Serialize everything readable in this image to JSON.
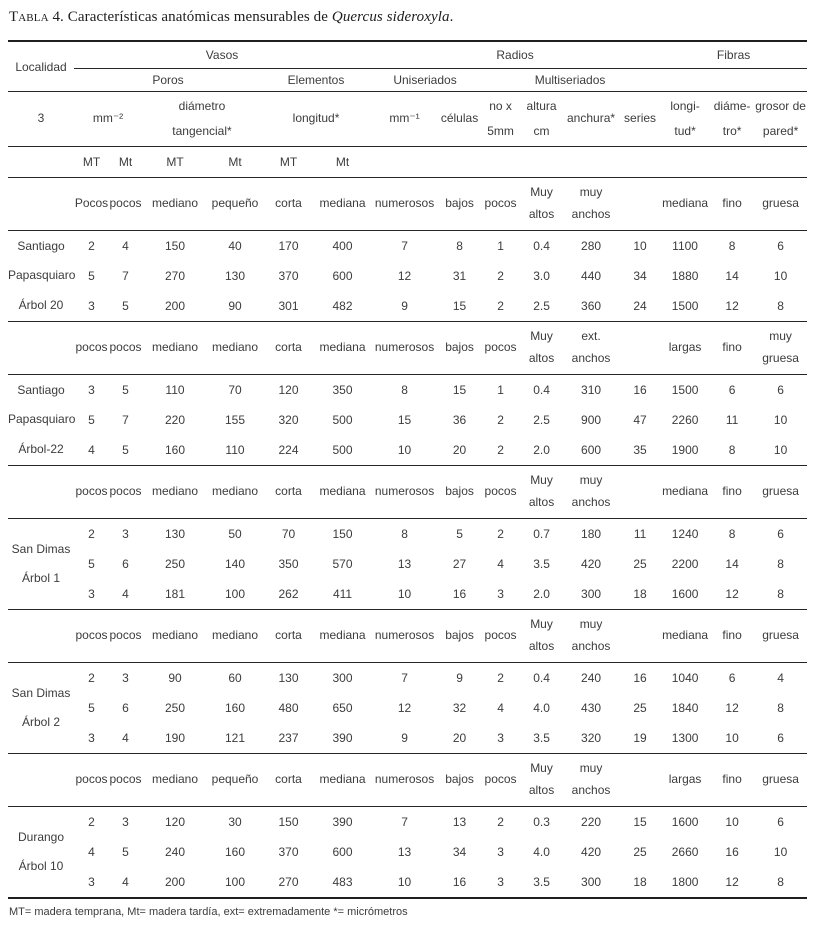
{
  "title": {
    "label": "Tabla 4.",
    "text": "Características anatómicas mensurables de",
    "species": "Quercus sideroxyla",
    "suffix": "."
  },
  "table": {
    "header": {
      "localidad": "Localidad",
      "localidad_sub": "3",
      "groups": {
        "vasos": "Vasos",
        "radios": "Radios",
        "fibras": "Fibras"
      },
      "subgroups": {
        "poros": "Poros",
        "elementos": "Elementos",
        "uniseriados": "Uniseriados",
        "multiseriados": "Multiseriados"
      },
      "columns": {
        "poros_mm2": "mm⁻²",
        "poros_diametro": "diámetro\ntangencial*",
        "elementos_longitud": "longitud*",
        "uni_mm1": "mm⁻¹",
        "uni_celulas": "células",
        "multi_no_x_5mm": "no x\n5mm",
        "multi_altura": "altura\ncm",
        "multi_anchura": "anchura*",
        "multi_series": "series",
        "fibras_longitud": "longi-\ntud*",
        "fibras_diametro": "diáme-\ntro*",
        "fibras_grosor": "grosor de\npared*"
      },
      "season": [
        "MT",
        "Mt",
        "MT",
        "Mt",
        "MT",
        "Mt"
      ]
    },
    "blocks": [
      {
        "locality": "Santiago\nPapasquiaro\nÁrbol 20",
        "qualitative": [
          "Pocos",
          "pocos",
          "mediano",
          "pequeño",
          "corta",
          "mediana",
          "numerosos",
          "bajos",
          "pocos",
          "Muy\naltos",
          "muy\nanchos",
          "",
          "mediana",
          "fino",
          "gruesa"
        ],
        "rows": [
          [
            "2",
            "4",
            "150",
            "40",
            "170",
            "400",
            "7",
            "8",
            "1",
            "0.4",
            "280",
            "10",
            "1100",
            "8",
            "6"
          ],
          [
            "5",
            "7",
            "270",
            "130",
            "370",
            "600",
            "12",
            "31",
            "2",
            "3.0",
            "440",
            "34",
            "1880",
            "14",
            "10"
          ],
          [
            "3",
            "5",
            "200",
            "90",
            "301",
            "482",
            "9",
            "15",
            "2",
            "2.5",
            "360",
            "24",
            "1500",
            "12",
            "8"
          ]
        ]
      },
      {
        "locality": "Santiago\nPapasquiaro\nÁrbol-22",
        "qualitative": [
          "pocos",
          "pocos",
          "mediano",
          "mediano",
          "corta",
          "mediana",
          "numerosos",
          "bajos",
          "pocos",
          "Muy\naltos",
          "ext.\nanchos",
          "",
          "largas",
          "fino",
          "muy\ngruesa"
        ],
        "rows": [
          [
            "3",
            "5",
            "110",
            "70",
            "120",
            "350",
            "8",
            "15",
            "1",
            "0.4",
            "310",
            "16",
            "1500",
            "6",
            "6"
          ],
          [
            "5",
            "7",
            "220",
            "155",
            "320",
            "500",
            "15",
            "36",
            "2",
            "2.5",
            "900",
            "47",
            "2260",
            "11",
            "10"
          ],
          [
            "4",
            "5",
            "160",
            "110",
            "224",
            "500",
            "10",
            "20",
            "2",
            "2.0",
            "600",
            "35",
            "1900",
            "8",
            "10"
          ]
        ]
      },
      {
        "locality": "San Dimas\nÁrbol 1",
        "qualitative": [
          "pocos",
          "pocos",
          "mediano",
          "mediano",
          "corta",
          "mediana",
          "numerosos",
          "bajos",
          "pocos",
          "Muy\naltos",
          "muy\nanchos",
          "",
          "mediana",
          "fino",
          "gruesa"
        ],
        "rows": [
          [
            "2",
            "3",
            "130",
            "50",
            "70",
            "150",
            "8",
            "5",
            "2",
            "0.7",
            "180",
            "11",
            "1240",
            "8",
            "6"
          ],
          [
            "5",
            "6",
            "250",
            "140",
            "350",
            "570",
            "13",
            "27",
            "4",
            "3.5",
            "420",
            "25",
            "2200",
            "14",
            "8"
          ],
          [
            "3",
            "4",
            "181",
            "100",
            "262",
            "411",
            "10",
            "16",
            "3",
            "2.0",
            "300",
            "18",
            "1600",
            "12",
            "8"
          ]
        ]
      },
      {
        "locality": "San Dimas\nÁrbol 2",
        "qualitative": [
          "pocos",
          "pocos",
          "mediano",
          "mediano",
          "corta",
          "mediana",
          "numerosos",
          "bajos",
          "pocos",
          "Muy\naltos",
          "muy\nanchos",
          "",
          "mediana",
          "fino",
          "gruesa"
        ],
        "rows": [
          [
            "2",
            "3",
            "90",
            "60",
            "130",
            "300",
            "7",
            "9",
            "2",
            "0.4",
            "240",
            "16",
            "1040",
            "6",
            "4"
          ],
          [
            "5",
            "6",
            "250",
            "160",
            "480",
            "650",
            "12",
            "32",
            "4",
            "4.0",
            "430",
            "25",
            "1840",
            "12",
            "8"
          ],
          [
            "3",
            "4",
            "190",
            "121",
            "237",
            "390",
            "9",
            "20",
            "3",
            "3.5",
            "320",
            "19",
            "1300",
            "10",
            "6"
          ]
        ]
      },
      {
        "locality": "Durango\nÁrbol 10",
        "qualitative": [
          "pocos",
          "pocos",
          "mediano",
          "pequeño",
          "corta",
          "mediana",
          "numerosos",
          "bajos",
          "pocos",
          "Muy\naltos",
          "muy\nanchos",
          "",
          "largas",
          "fino",
          "gruesa"
        ],
        "rows": [
          [
            "2",
            "3",
            "120",
            "30",
            "150",
            "390",
            "7",
            "13",
            "2",
            "0.3",
            "220",
            "15",
            "1600",
            "10",
            "6"
          ],
          [
            "4",
            "5",
            "240",
            "160",
            "370",
            "600",
            "13",
            "34",
            "3",
            "4.0",
            "420",
            "25",
            "2660",
            "16",
            "10"
          ],
          [
            "3",
            "4",
            "200",
            "100",
            "270",
            "483",
            "10",
            "16",
            "3",
            "3.5",
            "300",
            "18",
            "1800",
            "12",
            "8"
          ]
        ]
      }
    ]
  },
  "footnote": "MT= madera temprana, Mt= madera tardía,  ext= extremadamente *= micrómetros"
}
